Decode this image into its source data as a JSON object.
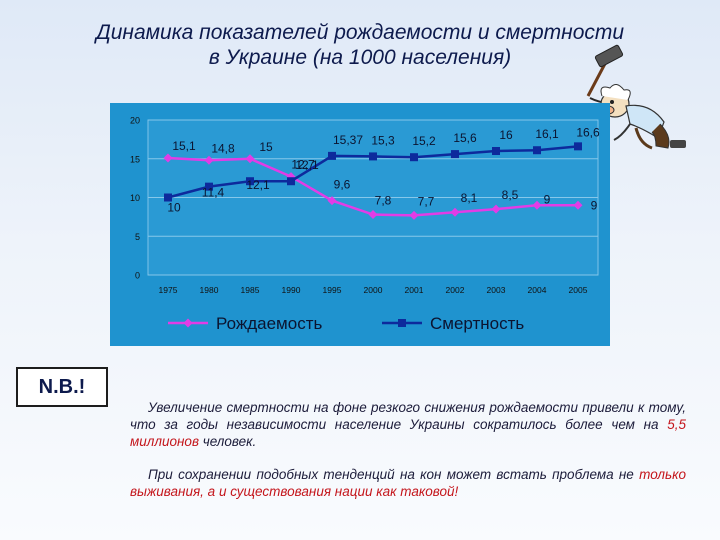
{
  "title": {
    "line1": "Динамика показателей рождаемости и смертности",
    "line2": "в Украине (на 1000 населения)"
  },
  "chart_data": {
    "type": "line",
    "categories": [
      "1975",
      "1980",
      "1985",
      "1990",
      "1995",
      "2000",
      "2001",
      "2002",
      "2003",
      "2004",
      "2005"
    ],
    "ylim": [
      0,
      20
    ],
    "yticks": [
      0,
      5,
      10,
      15,
      20
    ],
    "grid": true,
    "legend_position": "bottom",
    "series": [
      {
        "name": "Рождаемость",
        "color": "#e23ce6",
        "marker": "diamond",
        "values": [
          15.1,
          14.8,
          15,
          12.7,
          9.6,
          7.8,
          7.7,
          8.1,
          8.5,
          9,
          9
        ],
        "labels": [
          "15,1",
          "14,8",
          "15",
          "12,7",
          "9,6",
          "7,8",
          "7,7",
          "8,1",
          "8,5",
          "9",
          "9"
        ]
      },
      {
        "name": "Смертность",
        "color": "#0d2a9c",
        "marker": "square",
        "values": [
          10,
          11.4,
          12.1,
          12.1,
          15.37,
          15.3,
          15.2,
          15.6,
          16,
          16.1,
          16.6
        ],
        "labels": [
          "10",
          "11,4",
          "12,1",
          "12,1",
          "15,37",
          "15,3",
          "15,2",
          "15,6",
          "16",
          "16,1",
          "16,6"
        ]
      }
    ]
  },
  "nb_label": "N.B.!",
  "para1": {
    "part1": "Увеличение смертности на фоне резкого снижения рождаемости привели к тому, что за годы независимости население Украины сократилось более чем на ",
    "highlight": "5,5 миллионов",
    "part2": " человек."
  },
  "para2": {
    "part1": "При сохранении подобных тенденций на кон может встать проблема не ",
    "highlight": "только выживания, а и существования нации как таковой!"
  },
  "mascot_icon": "man-with-hammer-icon"
}
